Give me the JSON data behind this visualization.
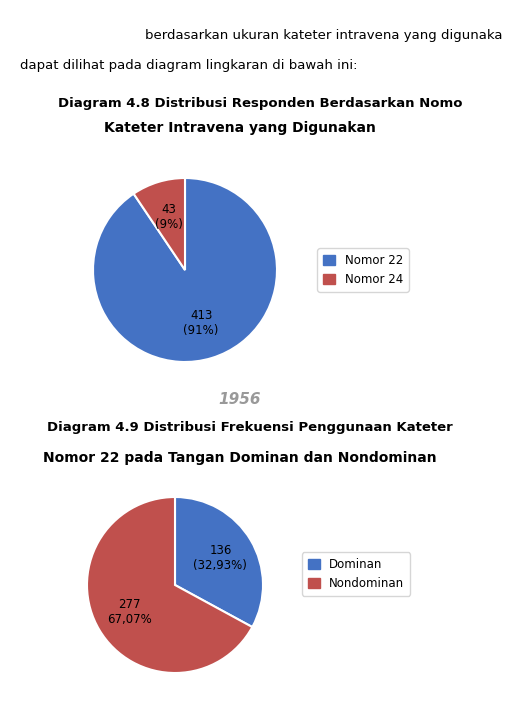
{
  "title1_line1": "Diagram 4.8 Distribusi Responden Berdasarkan Nomo",
  "title1_line2": "Kateter Intravena yang Digunakan",
  "pie1_values": [
    413,
    43
  ],
  "pie1_labels": [
    "413\n(91%)",
    "43\n(9%)"
  ],
  "pie1_colors": [
    "#4472C4",
    "#C0504D"
  ],
  "pie1_legend": [
    "Nomor 22",
    "Nomor 24"
  ],
  "pie1_startangle": 90,
  "title2_line1": "Diagram 4.9 Distribusi Frekuensi Penggunaan Kateter",
  "title2_line2": "Nomor 22 pada Tangan Dominan dan Nondominan",
  "pie2_values": [
    136,
    277
  ],
  "pie2_labels": [
    "136\n(32,93%)",
    "277\n67,07%"
  ],
  "pie2_colors": [
    "#4472C4",
    "#C0504D"
  ],
  "pie2_legend": [
    "Dominan",
    "Nondominan"
  ],
  "pie2_startangle": 90,
  "bg_color": "#FFFFFF",
  "text_intro1": "berdasarkan ukuran kateter intravena yang digunaka",
  "text_intro2": "dapat dilihat pada diagram lingkaran di bawah ini:",
  "year_text": "1956"
}
